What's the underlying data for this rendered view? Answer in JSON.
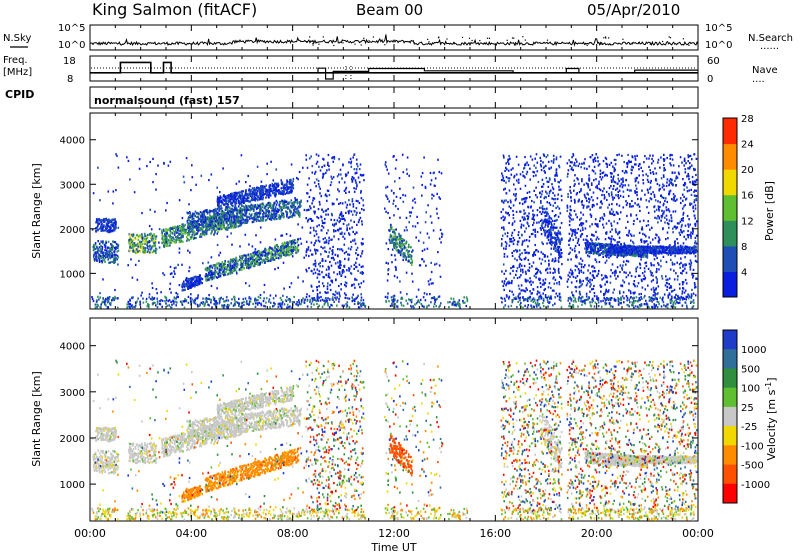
{
  "header": {
    "station": "King Salmon (fitACF)",
    "beam": "Beam 00",
    "date": "05/Apr/2010"
  },
  "side_labels": {
    "nsky": "N.Sky",
    "nsearch": "N.Search",
    "freq": "Freq.",
    "freq_unit": "[MHz]",
    "nave": "Nave",
    "cpid": "CPID",
    "program": "normalsound (fast) 157",
    "dots": "......",
    "dots_short": "...."
  },
  "chart_data": [
    {
      "type": "line",
      "panel": "noise",
      "yticks_left": [
        "10^5",
        "10^0"
      ],
      "yticks_right": [
        "10^5",
        "10^0"
      ],
      "series": [
        {
          "name": "N.Sky",
          "style": "solid"
        },
        {
          "name": "N.Search",
          "style": "dotted"
        }
      ]
    },
    {
      "type": "line",
      "panel": "frequency",
      "yticks_left": [
        "18",
        "8"
      ],
      "yticks_right": [
        "60",
        "0"
      ],
      "series": [
        {
          "name": "Freq.",
          "x": [
            0,
            1.2,
            1.2,
            2.4,
            2.4,
            2.9,
            2.9,
            3.2,
            3.2,
            24
          ],
          "y": [
            10,
            10,
            16.5,
            16.5,
            10,
            10,
            16.5,
            16.5,
            10,
            10
          ]
        },
        {
          "name": "Nave",
          "x": [
            0,
            9.0,
            9.0,
            9.3,
            9.3,
            9.6,
            9.6,
            11.0,
            11.0,
            13.2,
            13.2,
            16.7,
            16.7,
            18.8,
            18.8,
            19.3,
            19.3,
            21.5,
            21.5,
            24
          ],
          "y": [
            20,
            20,
            34,
            34,
            0,
            0,
            24,
            24,
            33,
            33,
            26,
            26,
            20,
            20,
            33,
            33,
            20,
            20,
            28,
            28
          ]
        }
      ]
    },
    {
      "type": "heatmap",
      "panel": "power",
      "ylabel": "Slant Range [km]",
      "yticks": [
        "1000",
        "2000",
        "3000",
        "4000"
      ],
      "colorbar": {
        "label": "Power [dB]",
        "ticks": [
          "4",
          "8",
          "12",
          "16",
          "20",
          "24",
          "28"
        ],
        "colors": [
          "#0a1ee0",
          "#1f4fb4",
          "#2f8f5a",
          "#5fbf30",
          "#f0d800",
          "#ff8c00",
          "#ff2a00"
        ]
      }
    },
    {
      "type": "heatmap",
      "panel": "velocity",
      "ylabel": "Slant Range [km]",
      "yticks": [
        "1000",
        "2000",
        "3000",
        "4000"
      ],
      "xlabel": "Time UT",
      "xticks": [
        "00:00",
        "04:00",
        "08:00",
        "12:00",
        "16:00",
        "20:00",
        "00:00"
      ],
      "colorbar": {
        "label": "Velocity",
        "unit": "[m s",
        "unit_exp": "-1",
        "unit_close": "]",
        "ticks": [
          "1000",
          "500",
          "100",
          "25",
          "-25",
          "-100",
          "-500",
          "-1000"
        ],
        "colors": [
          "#1e3cc8",
          "#2f6f9a",
          "#2f8f3f",
          "#5fbf30",
          "#c8c8c8",
          "#f0d800",
          "#ff8c00",
          "#ff5000",
          "#ff0000"
        ]
      }
    }
  ]
}
